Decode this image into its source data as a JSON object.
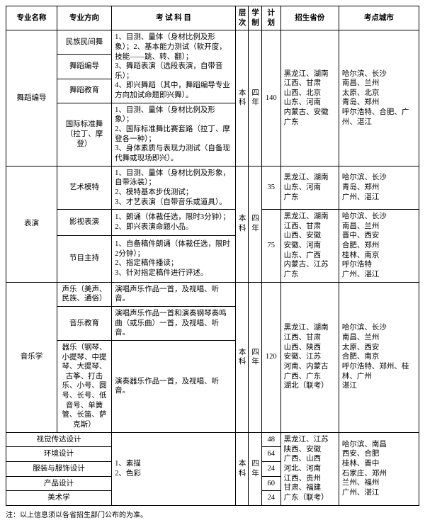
{
  "headers": {
    "major": "专业名称",
    "direction": "专业方向",
    "subjects": "考 试 科 目",
    "level": "层次",
    "duration": "学制",
    "plan": "计划",
    "provinces": "招生省份",
    "cities": "考点城市"
  },
  "col_widths": [
    "70",
    "75",
    "170",
    "18",
    "18",
    "26",
    "80",
    "110"
  ],
  "rows": [
    {
      "major": "舞蹈编导",
      "major_rows": 4,
      "direction": "民族民间舞",
      "subjects": "1、目测、量体（身材比例及形象）；2、基本能力测试（软开度，技能――跳、转、翻）；\n3、舞蹈表演（选段表演，自带音乐）；\n4、即兴舞蹈（其中，舞蹈编导专业方向加试命题即兴舞）。",
      "subjects_rows": 3,
      "level": "本科",
      "level_rows": 4,
      "duration": "四年",
      "duration_rows": 4,
      "plan": "140",
      "plan_rows": 4,
      "provinces": "黑龙江、湖南\n江西、甘肃\n山西、北京\n山东、河南\n内蒙古、安徽\n广东",
      "provinces_rows": 4,
      "cities": "哈尔滨、长沙\n南昌、兰州\n太原、北京\n青岛、郑州\n呼尔浩特、合肥、广州、湛江",
      "cities_rows": 4
    },
    {
      "direction": "舞蹈编导"
    },
    {
      "direction": "舞蹈教育"
    },
    {
      "direction": "国际标准舞\n（拉丁、摩登）",
      "subjects": "1、目测、量体（身材比例及形象）；\n2、国际标准舞比赛套路（拉丁、摩登各一种）；\n3、身体素质与表现力测试（自备现代舞或现场即兴）。"
    },
    {
      "major": "表演",
      "major_rows": 3,
      "direction": "艺术模特",
      "subjects": "1、目测、量体（身材比例及形象，自带泳装）；\n2、模特基本步伐测试；\n3、才艺表演（自带音乐或道具）。",
      "level": "本科",
      "level_rows": 3,
      "duration": "四年",
      "duration_rows": 3,
      "plan": "35",
      "provinces": "黑龙江、湖南\n山东、河南\n广东",
      "cities": "哈尔滨、长沙\n青岛、郑州\n广州、湛江"
    },
    {
      "direction": "影视表演",
      "subjects": "1、朗诵（体裁任选，限时3分钟）；\n2、即兴表演命题小品。",
      "plan": "75",
      "plan_rows": 2,
      "provinces": "黑龙江、湖南\n江西、甘肃\n山西、安徽\n安徽、河南\n山东、广西\n内蒙古、江苏\n广东",
      "provinces_rows": 2,
      "cities": "哈尔滨、长沙\n南昌、兰州\n晋中、西安\n合肥、郑州\n桂林、南京\n呼尔浩特\n广州、湛江",
      "cities_rows": 2
    },
    {
      "direction": "节目主持",
      "subjects": "1、自备稿件朗诵（体裁任选，限时2分钟）；\n2、指定稿件播读；\n3、针对指定稿件进行评述。"
    },
    {
      "major": "音乐学",
      "major_rows": 3,
      "direction": "声乐（美声、\n民族、通俗）",
      "subjects": "演唱声乐作品一首，及视唱、听音。",
      "level": "本科",
      "level_rows": 3,
      "duration": "四年",
      "duration_rows": 3,
      "plan": "120",
      "plan_rows": 3,
      "provinces": "黑龙江、湖南\n江西、甘肃\n山西、陕西\n安徽、江苏\n河南、内蒙古\n广西、广东\n湖北（联考）",
      "provinces_rows": 3,
      "cities": "哈尔滨、长沙\n南昌、兰州\n太原、西安\n合肥、南京\n呼尔浩特、郑州、桂林、广州\n湛江",
      "cities_rows": 3
    },
    {
      "direction": "音乐教育",
      "subjects": "演唱声乐作品一首和演奏钢琴奏鸣曲（或乐曲）一首，及视唱、听音。"
    },
    {
      "direction": "器乐（钢琴、小提琴、中提琴、大提琴、古筝、打击乐、小号、圆号、长号、低音号、单簧管、长笛、萨克斯）",
      "subjects": "演奏器乐作品一首，及视唱、听音。"
    },
    {
      "major": "视觉传达设计",
      "major_cols": 2,
      "subjects": "1、素描\n2、色彩",
      "subjects_rows": 5,
      "level": "本科",
      "level_rows": 5,
      "duration": "四年",
      "duration_rows": 5,
      "plan": "48",
      "provinces": "黑龙江、江苏\n陕西、安徽\n广西、山西\n河北、河南\n江西、贵州\n甘肃、福建\n广东（联考）",
      "provinces_rows": 5,
      "cities": "哈尔滨、南昌\n西安、合肥\n桂林、晋中\n石家庄、郑州\n兰州、福州\n广州、湛江",
      "cities_rows": 5
    },
    {
      "major": "环境设计",
      "major_cols": 2,
      "plan": "64"
    },
    {
      "major": "服装与服饰设计",
      "major_cols": 2,
      "plan": "24"
    },
    {
      "major": "产品设计",
      "major_cols": 2,
      "plan": "60"
    },
    {
      "major": "美术学",
      "major_cols": 2,
      "plan": "24"
    }
  ],
  "footnote": "注：以上信息须以各省招生部门公布的为准。"
}
